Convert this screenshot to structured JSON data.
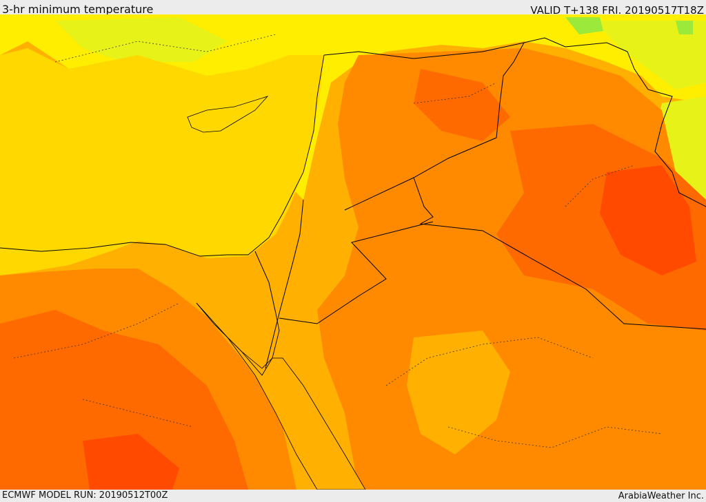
{
  "header": {
    "title": "3-hr minimum temperature",
    "valid": "VALID T+138 FRI. 20190517T18Z"
  },
  "footer": {
    "model_run": "ECMWF MODEL RUN: 20190512T00Z",
    "credit": "ArabiaWeather Inc."
  },
  "palette": {
    "sea": "#ffd800",
    "cool_green": "#9be93a",
    "yellow_green": "#e6f218",
    "bright_yellow": "#ffee00",
    "light_orange": "#ffb000",
    "orange": "#ff8a00",
    "dark_orange": "#ff6a00",
    "red_orange": "#ff4a00",
    "border_line": "#000000"
  }
}
